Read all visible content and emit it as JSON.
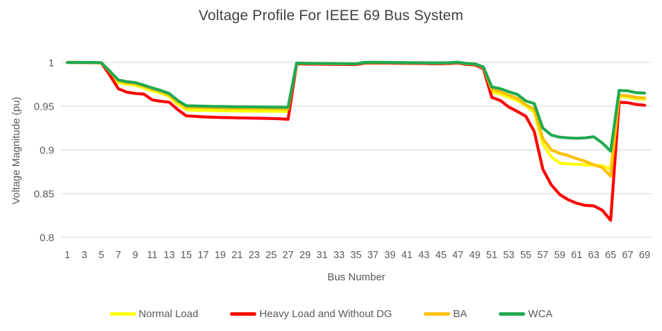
{
  "chart_data": {
    "type": "line",
    "title": "Voltage Profile For IEEE 69 Bus System",
    "xlabel": "Bus Number",
    "ylabel": "Voltage Magnitude (pu)",
    "ylim": [
      0.8,
      1.0
    ],
    "grid": true,
    "legend_position": "bottom",
    "gridline_color": "#D9D9D9",
    "text_color": "#595959",
    "title_color": "#404040",
    "y_ticks": [
      1,
      0.95,
      0.9,
      0.85,
      0.8
    ],
    "y_tick_labels": [
      "1",
      "0.95",
      "0.9",
      "0.85",
      "0.8"
    ],
    "x_ticks": [
      1,
      3,
      5,
      7,
      9,
      11,
      13,
      15,
      17,
      19,
      21,
      23,
      25,
      27,
      29,
      31,
      33,
      35,
      37,
      39,
      41,
      43,
      45,
      47,
      49,
      51,
      53,
      55,
      57,
      59,
      61,
      63,
      65,
      67,
      69
    ],
    "x": [
      1,
      2,
      3,
      4,
      5,
      6,
      7,
      8,
      9,
      10,
      11,
      12,
      13,
      14,
      15,
      16,
      17,
      18,
      19,
      20,
      21,
      22,
      23,
      24,
      25,
      26,
      27,
      28,
      29,
      30,
      31,
      32,
      33,
      34,
      35,
      36,
      37,
      38,
      39,
      40,
      41,
      42,
      43,
      44,
      45,
      46,
      47,
      48,
      49,
      50,
      51,
      52,
      53,
      54,
      55,
      56,
      57,
      58,
      59,
      60,
      61,
      62,
      63,
      64,
      65,
      66,
      67,
      68,
      69
    ],
    "series": [
      {
        "name": "Normal Load",
        "color": "#FFFF00",
        "values": [
          1,
          1,
          0.9999,
          0.9998,
          0.9996,
          0.9885,
          0.977,
          0.975,
          0.974,
          0.971,
          0.9675,
          0.965,
          0.961,
          0.952,
          0.946,
          0.9455,
          0.9452,
          0.945,
          0.9448,
          0.9446,
          0.9445,
          0.9444,
          0.9443,
          0.9442,
          0.9441,
          0.9441,
          0.944,
          0.9988,
          0.9986,
          0.9985,
          0.9984,
          0.9983,
          0.9982,
          0.9981,
          0.998,
          0.9995,
          0.9997,
          0.9996,
          0.9995,
          0.9994,
          0.9993,
          0.9992,
          0.9991,
          0.999,
          0.999,
          0.9992,
          0.9997,
          0.9983,
          0.9978,
          0.994,
          0.966,
          0.964,
          0.96,
          0.9565,
          0.9505,
          0.943,
          0.907,
          0.892,
          0.885,
          0.884,
          0.8835,
          0.883,
          0.8825,
          0.882,
          0.878,
          0.961,
          0.9605,
          0.9585,
          0.958
        ]
      },
      {
        "name": "Heavy Load and Without DG",
        "color": "#FF0000",
        "values": [
          1,
          1,
          0.9999,
          0.9997,
          0.9995,
          0.9855,
          0.97,
          0.966,
          0.9645,
          0.9638,
          0.9572,
          0.9556,
          0.9545,
          0.946,
          0.939,
          0.9384,
          0.9378,
          0.9374,
          0.9371,
          0.9369,
          0.9367,
          0.9365,
          0.9363,
          0.9361,
          0.9359,
          0.9356,
          0.935,
          0.9984,
          0.9982,
          0.9981,
          0.998,
          0.9979,
          0.9978,
          0.9977,
          0.9976,
          0.9992,
          0.9994,
          0.9993,
          0.9992,
          0.9991,
          0.999,
          0.9989,
          0.9988,
          0.9986,
          0.9986,
          0.9988,
          0.9994,
          0.9978,
          0.9972,
          0.993,
          0.96,
          0.9565,
          0.949,
          0.944,
          0.9385,
          0.921,
          0.878,
          0.86,
          0.849,
          0.843,
          0.839,
          0.8365,
          0.836,
          0.831,
          0.8195,
          0.9545,
          0.954,
          0.952,
          0.951
        ]
      },
      {
        "name": "BA",
        "color": "#FFC000",
        "values": [
          1,
          1,
          0.9999,
          0.9999,
          0.9997,
          0.9895,
          0.979,
          0.9768,
          0.9758,
          0.9728,
          0.9695,
          0.9668,
          0.9628,
          0.955,
          0.949,
          0.9486,
          0.9483,
          0.9481,
          0.9479,
          0.9477,
          0.9476,
          0.9475,
          0.9474,
          0.9473,
          0.9472,
          0.9471,
          0.947,
          0.9991,
          0.9989,
          0.9988,
          0.9987,
          0.9986,
          0.9985,
          0.9984,
          0.9983,
          0.9998,
          1,
          0.9999,
          0.9998,
          0.9997,
          0.9996,
          0.9995,
          0.9994,
          0.9993,
          0.9993,
          0.9995,
          1,
          0.9986,
          0.9981,
          0.9945,
          0.969,
          0.9665,
          0.9625,
          0.959,
          0.9515,
          0.9465,
          0.913,
          0.9,
          0.896,
          0.8935,
          0.89,
          0.887,
          0.883,
          0.88,
          0.87,
          0.9625,
          0.962,
          0.96,
          0.9595
        ]
      },
      {
        "name": "WCA",
        "color": "#21A94F",
        "values": [
          1,
          1,
          1,
          1,
          0.9998,
          0.99,
          0.98,
          0.978,
          0.977,
          0.974,
          0.9708,
          0.968,
          0.9645,
          0.9565,
          0.9505,
          0.9502,
          0.95,
          0.9498,
          0.9496,
          0.9495,
          0.9494,
          0.9493,
          0.9492,
          0.9491,
          0.949,
          0.9489,
          0.9488,
          0.9993,
          0.9991,
          0.999,
          0.9989,
          0.9988,
          0.9987,
          0.9986,
          0.9985,
          1,
          1.0002,
          1.0001,
          1,
          0.9999,
          0.9998,
          0.9997,
          0.9996,
          0.9995,
          0.9995,
          0.9997,
          1.0002,
          0.9988,
          0.9983,
          0.995,
          0.972,
          0.97,
          0.9665,
          0.9635,
          0.956,
          0.953,
          0.925,
          0.917,
          0.9145,
          0.9137,
          0.9133,
          0.9137,
          0.915,
          0.908,
          0.8985,
          0.968,
          0.9675,
          0.9655,
          0.965
        ]
      }
    ]
  }
}
